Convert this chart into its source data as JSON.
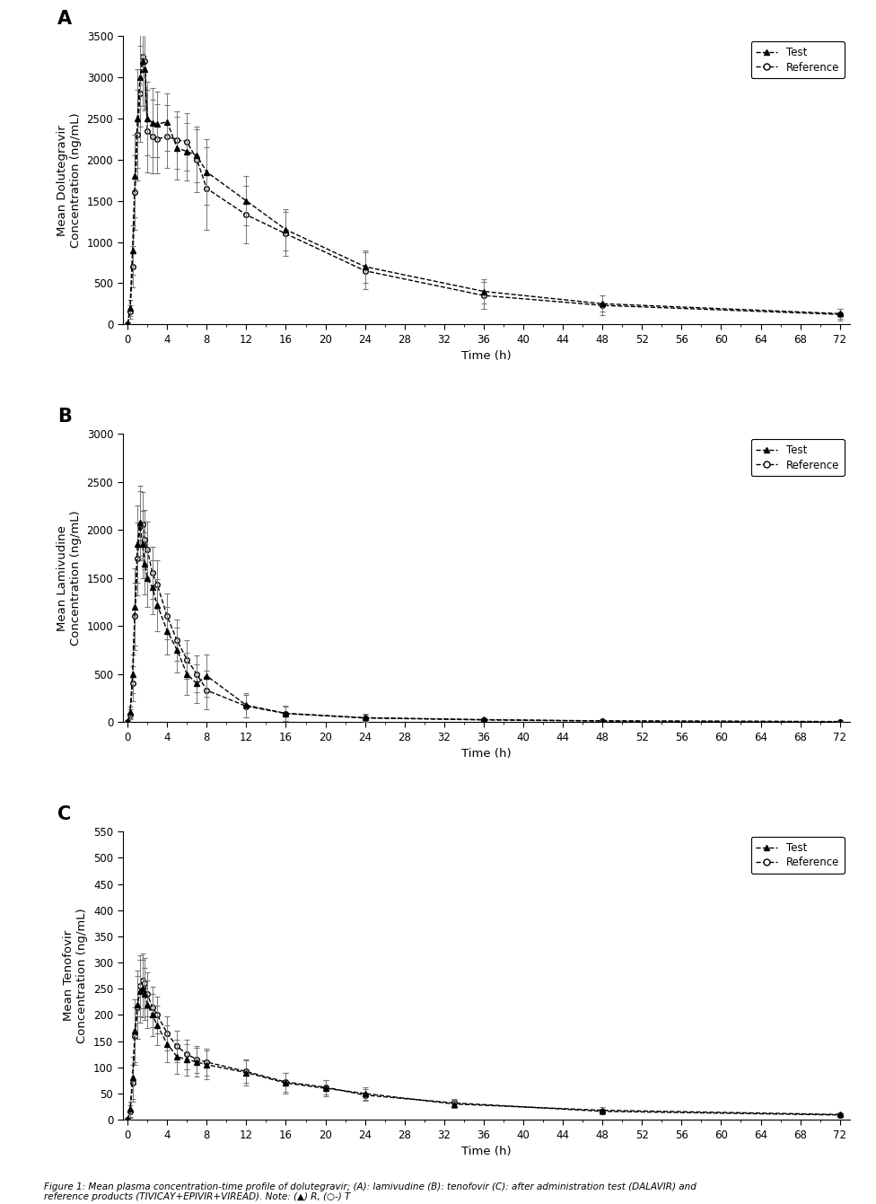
{
  "panel_A": {
    "label": "A",
    "ylabel": "Mean Dolutegravir\nConcentration (ng/mL)",
    "ylim": [
      0,
      3500
    ],
    "yticks": [
      0,
      500,
      1000,
      1500,
      2000,
      2500,
      3000,
      3500
    ],
    "test_x": [
      0,
      0.25,
      0.5,
      0.75,
      1.0,
      1.25,
      1.5,
      1.75,
      2.0,
      2.5,
      3.0,
      4.0,
      5.0,
      6.0,
      7.0,
      8.0,
      12.0,
      16.0,
      24.0,
      36.0,
      48.0,
      72.0
    ],
    "test_y": [
      0,
      200,
      900,
      1800,
      2500,
      3000,
      3200,
      3100,
      2500,
      2450,
      2430,
      2460,
      2140,
      2100,
      2050,
      1850,
      1500,
      1150,
      700,
      400,
      250,
      130
    ],
    "test_err": [
      0,
      100,
      300,
      500,
      600,
      600,
      550,
      500,
      450,
      420,
      400,
      350,
      380,
      350,
      320,
      400,
      300,
      250,
      200,
      150,
      100,
      60
    ],
    "ref_x": [
      0,
      0.25,
      0.5,
      0.75,
      1.0,
      1.25,
      1.5,
      1.75,
      2.0,
      2.5,
      3.0,
      4.0,
      5.0,
      6.0,
      7.0,
      8.0,
      12.0,
      16.0,
      24.0,
      36.0,
      48.0,
      72.0
    ],
    "ref_y": [
      0,
      150,
      700,
      1600,
      2300,
      2800,
      3250,
      3200,
      2350,
      2280,
      2250,
      2280,
      2240,
      2220,
      2000,
      1650,
      1330,
      1100,
      650,
      350,
      230,
      120
    ],
    "ref_err": [
      0,
      80,
      250,
      450,
      550,
      580,
      600,
      580,
      500,
      450,
      420,
      380,
      350,
      350,
      400,
      500,
      350,
      270,
      220,
      160,
      120,
      70
    ]
  },
  "panel_B": {
    "label": "B",
    "ylabel": "Mean Lamivudine\nConcentration (ng/mL)",
    "ylim": [
      0,
      3000
    ],
    "yticks": [
      0,
      500,
      1000,
      1500,
      2000,
      2500,
      3000
    ],
    "test_x": [
      0,
      0.25,
      0.5,
      0.75,
      1.0,
      1.25,
      1.5,
      1.75,
      2.0,
      2.5,
      3.0,
      4.0,
      5.0,
      6.0,
      7.0,
      8.0,
      12.0,
      16.0,
      24.0,
      36.0,
      48.0,
      72.0
    ],
    "test_y": [
      0,
      100,
      500,
      1200,
      1850,
      2080,
      1850,
      1650,
      1500,
      1400,
      1220,
      950,
      750,
      500,
      400,
      480,
      175,
      90,
      45,
      25,
      12,
      5
    ],
    "test_err": [
      0,
      60,
      200,
      400,
      400,
      380,
      350,
      320,
      300,
      280,
      270,
      250,
      230,
      220,
      200,
      220,
      130,
      80,
      40,
      20,
      10,
      5
    ],
    "ref_x": [
      0,
      0.25,
      0.5,
      0.75,
      1.0,
      1.25,
      1.5,
      1.75,
      2.0,
      2.5,
      3.0,
      4.0,
      5.0,
      6.0,
      7.0,
      8.0,
      12.0,
      16.0,
      24.0,
      36.0,
      48.0,
      72.0
    ],
    "ref_y": [
      0,
      80,
      400,
      1100,
      1700,
      2040,
      2060,
      1900,
      1800,
      1550,
      1430,
      1100,
      850,
      650,
      500,
      330,
      165,
      88,
      42,
      22,
      10,
      4
    ],
    "ref_err": [
      0,
      50,
      180,
      350,
      380,
      360,
      330,
      310,
      290,
      270,
      255,
      235,
      215,
      200,
      190,
      200,
      120,
      75,
      38,
      18,
      9,
      4
    ]
  },
  "panel_C": {
    "label": "C",
    "ylabel": "Mean Tenofovir\nConcentration (ng/mL)",
    "ylim": [
      0,
      550
    ],
    "yticks": [
      0,
      50,
      100,
      150,
      200,
      250,
      300,
      350,
      400,
      450,
      500,
      550
    ],
    "test_x": [
      0,
      0.25,
      0.5,
      0.75,
      1.0,
      1.25,
      1.5,
      1.75,
      2.0,
      2.5,
      3.0,
      4.0,
      5.0,
      6.0,
      7.0,
      8.0,
      12.0,
      16.0,
      20.0,
      24.0,
      33.0,
      48.0,
      72.0
    ],
    "test_y": [
      0,
      20,
      80,
      170,
      220,
      245,
      250,
      240,
      220,
      200,
      180,
      145,
      120,
      115,
      110,
      105,
      90,
      70,
      60,
      50,
      30,
      18,
      10
    ],
    "test_err": [
      0,
      15,
      40,
      60,
      65,
      60,
      55,
      50,
      45,
      40,
      38,
      35,
      32,
      30,
      28,
      28,
      25,
      20,
      15,
      12,
      8,
      6,
      4
    ],
    "ref_x": [
      0,
      0.25,
      0.5,
      0.75,
      1.0,
      1.25,
      1.5,
      1.75,
      2.0,
      2.5,
      3.0,
      4.0,
      5.0,
      6.0,
      7.0,
      8.0,
      12.0,
      16.0,
      20.0,
      24.0,
      33.0,
      48.0,
      72.0
    ],
    "ref_y": [
      0,
      15,
      70,
      160,
      215,
      255,
      265,
      260,
      240,
      215,
      200,
      165,
      140,
      125,
      115,
      110,
      92,
      72,
      62,
      47,
      32,
      16,
      9
    ],
    "ref_err": [
      0,
      12,
      35,
      55,
      60,
      58,
      52,
      48,
      42,
      38,
      35,
      32,
      30,
      28,
      26,
      25,
      22,
      18,
      14,
      11,
      7,
      5,
      3
    ]
  },
  "xticks": [
    0,
    4,
    8,
    12,
    16,
    20,
    24,
    28,
    32,
    36,
    40,
    44,
    48,
    52,
    56,
    60,
    64,
    68,
    72
  ],
  "xlabel": "Time (h)",
  "figure_caption": "Figure 1: Mean plasma concentration-time profile of dolutegravir; (A): lamivudine (B): tenofovir (C): after administration test (DALAVIR) and\nreference products (TIVICAY+EPIVIR+VIREAD). Note: (▲) R, (○-) T",
  "background": "#ffffff"
}
